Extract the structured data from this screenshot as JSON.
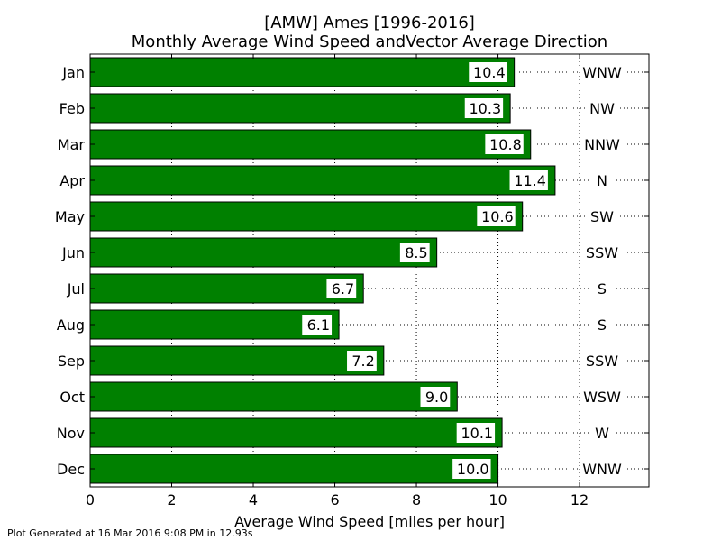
{
  "chart_data": {
    "type": "bar",
    "orientation": "horizontal",
    "title": "[AMW] Ames [1996-2016]",
    "subtitle": "Monthly Average Wind Speed andVector Average Direction",
    "xlabel": "Average Wind Speed [miles per hour]",
    "ylabel": "",
    "xlim": [
      0,
      13.7
    ],
    "xticks": [
      0,
      2,
      4,
      6,
      8,
      10,
      12
    ],
    "grid": true,
    "categories": [
      "Jan",
      "Feb",
      "Mar",
      "Apr",
      "May",
      "Jun",
      "Jul",
      "Aug",
      "Sep",
      "Oct",
      "Nov",
      "Dec"
    ],
    "values": [
      10.4,
      10.3,
      10.8,
      11.4,
      10.6,
      8.5,
      6.7,
      6.1,
      7.2,
      9.0,
      10.1,
      10.0
    ],
    "value_labels": [
      "10.4",
      "10.3",
      "10.8",
      "11.4",
      "10.6",
      "8.5",
      "6.7",
      "6.1",
      "7.2",
      "9.0",
      "10.1",
      "10.0"
    ],
    "directions": [
      "WNW",
      "NW",
      "NNW",
      "N",
      "SW",
      "SSW",
      "S",
      "S",
      "SSW",
      "WSW",
      "W",
      "WNW"
    ],
    "bar_color": "#008000",
    "footer": "Plot Generated at 16 Mar 2016 9:08 PM in 12.93s"
  }
}
